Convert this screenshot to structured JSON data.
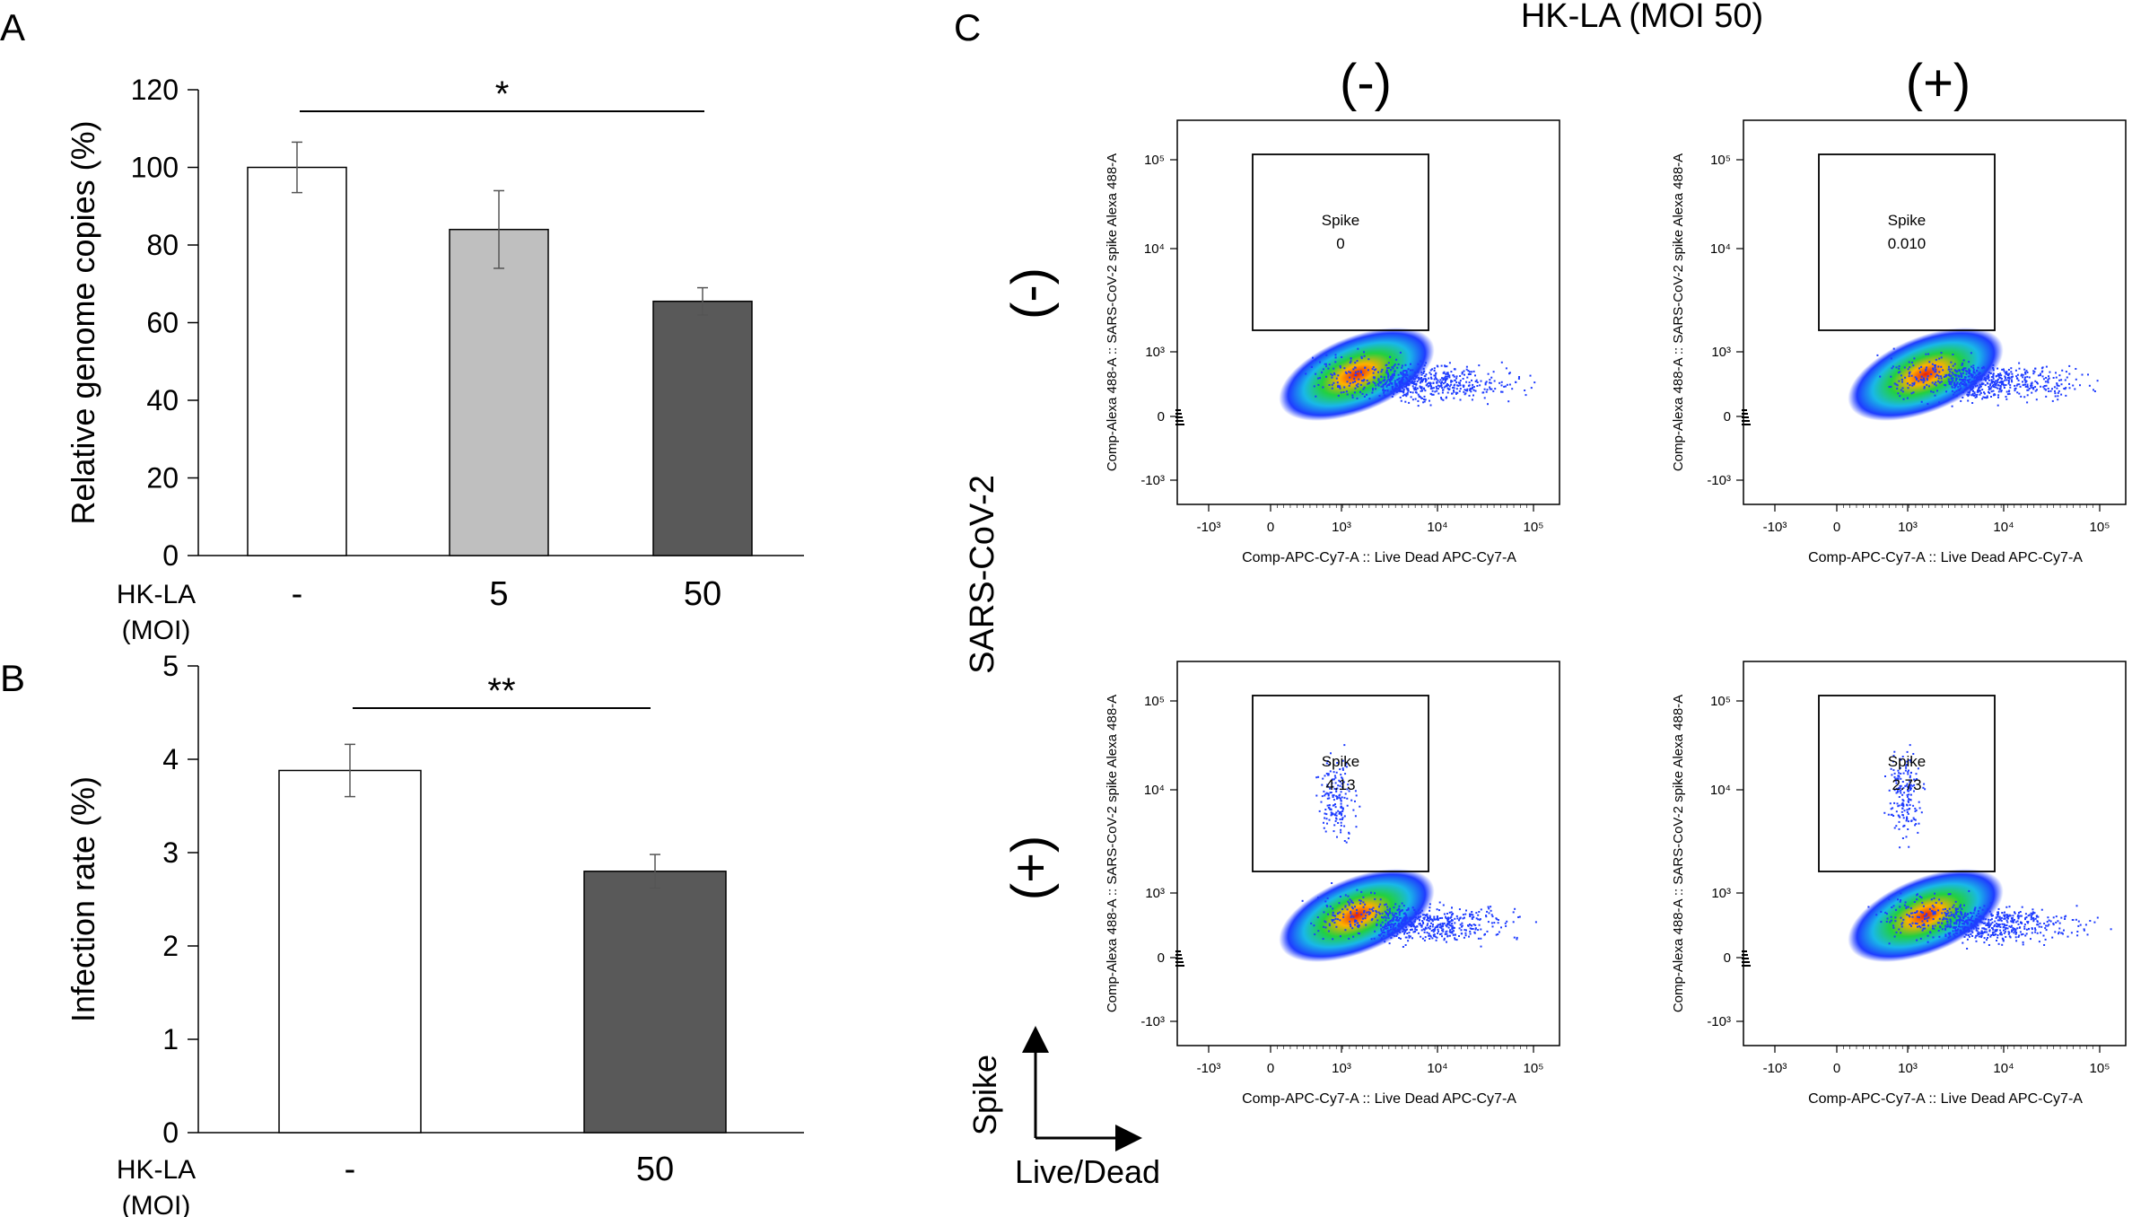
{
  "panel_labels": {
    "a": "A",
    "b": "B",
    "c": "C"
  },
  "chart_data": [
    {
      "id": "A",
      "type": "bar",
      "ylabel": "Relative genome copies (%)",
      "xlabel_line1": "HK-LA",
      "xlabel_line2": "(MOI)",
      "categories": [
        "-",
        "5",
        "50"
      ],
      "values": [
        100,
        84,
        65.5
      ],
      "errors": [
        6.5,
        10,
        3.5
      ],
      "colors": [
        "#ffffff",
        "#bfbfbf",
        "#595959"
      ],
      "ylim": [
        0,
        120
      ],
      "yticks": [
        "0",
        "20",
        "40",
        "60",
        "80",
        "100",
        "120"
      ],
      "significance": "*",
      "significance_between": [
        "-",
        "50"
      ]
    },
    {
      "id": "B",
      "type": "bar",
      "ylabel": "Infection rate (%)",
      "xlabel_line1": "HK-LA",
      "xlabel_line2": "(MOI)",
      "categories": [
        "-",
        "50"
      ],
      "values": [
        3.88,
        2.8
      ],
      "errors": [
        0.28,
        0.18
      ],
      "colors": [
        "#ffffff",
        "#595959"
      ],
      "ylim": [
        0,
        5
      ],
      "yticks": [
        "0",
        "1",
        "2",
        "3",
        "4",
        "5"
      ],
      "significance": "**",
      "significance_between": [
        "-",
        "50"
      ]
    },
    {
      "id": "C",
      "type": "scatter",
      "title": "HK-LA (MOI 50)",
      "column_headers": [
        "(-)",
        "(+)"
      ],
      "row_headers": [
        "(-)",
        "(+)"
      ],
      "row_group_label": "SARS-CoV-2",
      "ylabel": "Comp-Alexa 488-A :: SARS-CoV-2 spike Alexa 488-A",
      "xlabel": "Comp-APC-Cy7-A :: Live Dead APC-Cy7-A",
      "xticks": [
        "-10³",
        "0",
        "10³",
        "10⁴",
        "10⁵"
      ],
      "yticks": [
        "-10³",
        "0",
        "10³",
        "10⁴",
        "10⁵"
      ],
      "gate_name": "Spike",
      "plots": [
        {
          "row": "(-)",
          "col": "(-)",
          "gate_value": "0"
        },
        {
          "row": "(-)",
          "col": "(+)",
          "gate_value": "0.010"
        },
        {
          "row": "(+)",
          "col": "(-)",
          "gate_value": "4.13"
        },
        {
          "row": "(+)",
          "col": "(+)",
          "gate_value": "2.73"
        }
      ],
      "axis_key": {
        "y": "Spike",
        "x": "Live/Dead"
      }
    }
  ]
}
